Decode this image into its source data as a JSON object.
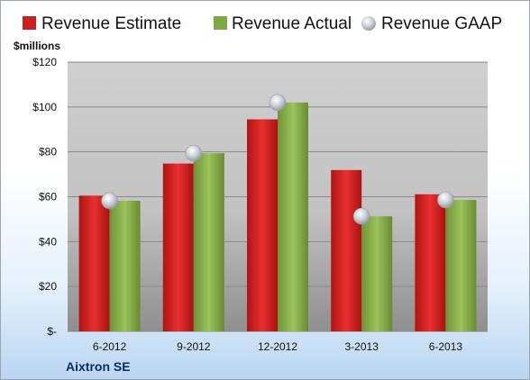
{
  "chart_data": {
    "type": "bar",
    "unit_label": "$millions",
    "company": "Aixtron SE",
    "categories": [
      "6-2012",
      "9-2012",
      "12-2012",
      "3-2013",
      "6-2013"
    ],
    "series": [
      {
        "name": "Revenue Estimate",
        "kind": "bar",
        "color": "#cc1f1f",
        "values": [
          60.5,
          74.8,
          94.5,
          71.9,
          61.1
        ]
      },
      {
        "name": "Revenue Actual",
        "kind": "bar",
        "color": "#80a840",
        "values": [
          58.2,
          79.4,
          102.0,
          51.3,
          58.6
        ]
      },
      {
        "name": "Revenue GAAP",
        "kind": "marker",
        "color": "#b8bcc4",
        "values": [
          58.2,
          79.4,
          102.0,
          51.3,
          58.6
        ]
      }
    ],
    "ylim": [
      0,
      120
    ],
    "yticks": [
      0,
      20,
      40,
      60,
      80,
      100,
      120
    ],
    "ytick_labels": [
      "$-",
      "$20",
      "$40",
      "$60",
      "$80",
      "$100",
      "$120"
    ],
    "grid": true,
    "legend_position": "top"
  }
}
